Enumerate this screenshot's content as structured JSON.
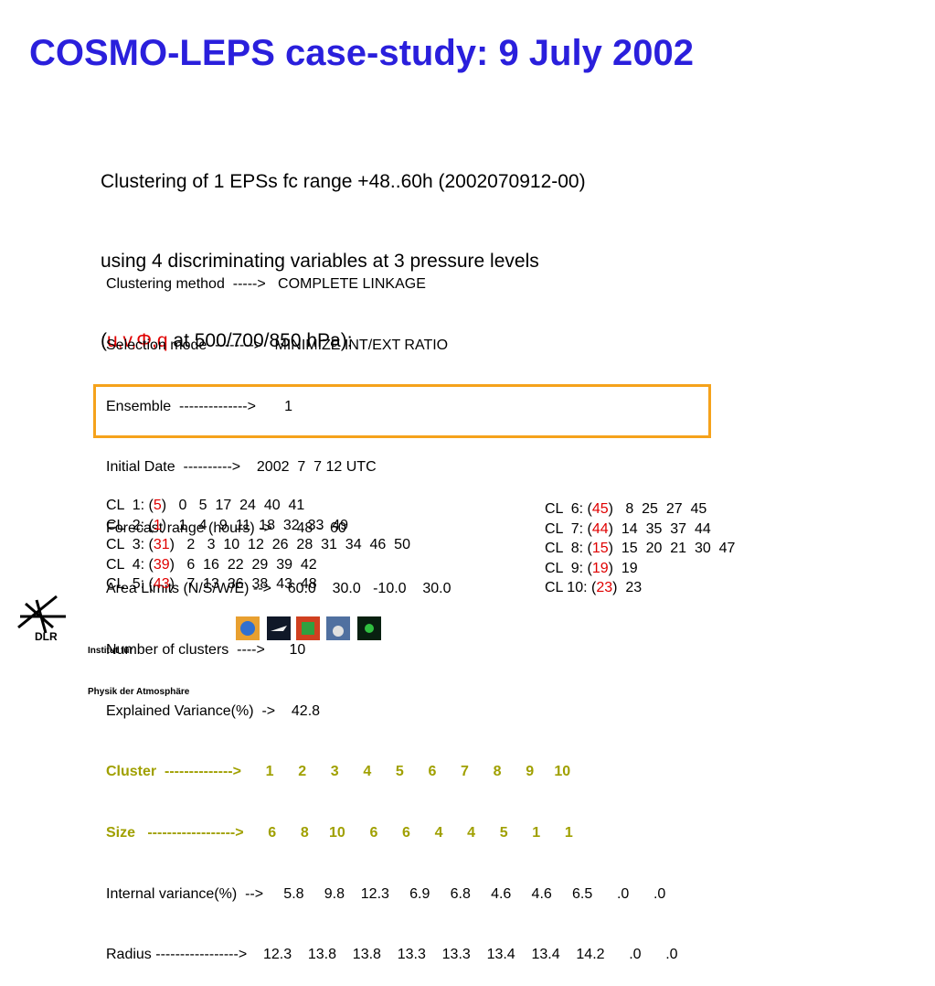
{
  "title": "COSMO-LEPS case-study: 9 July 2002",
  "intro": {
    "lines": [
      "Clustering of 1 EPSs fc range +48..60h (2002070912-00)",
      "using 4 discriminating variables at 3 pressure levels"
    ],
    "last_line": {
      "open": "(",
      "variables": "u,v,Φ,q",
      "rest": "at 500/700/850 hPa):"
    }
  },
  "settings": {
    "lines": [
      "Clustering method  ----->   COMPLETE LINKAGE",
      "Selection mode  -------->   MINIMIZE INT/EXT RATIO",
      "Ensemble  -------------->       1",
      "Initial Date  ---------->    2002  7  7 12 UTC",
      "Forecast range (hours) ->      48 -  60",
      "Area Limits (N/S/W/E) -->    60.0    30.0   -10.0    30.0",
      "Number of clusters  ---->      10",
      "Explained Variance(%)  ->    42.8"
    ],
    "highlighted": [
      "Cluster  -------------->      1      2      3      4      5      6      7      8      9     10",
      "Size   ------------------>      6      8     10      6      6      4      4      5      1      1"
    ],
    "after": [
      "Internal variance(%)  -->     5.8     9.8    12.3     6.9     6.8     4.6     4.6     6.5      .0      .0",
      "Radius ----------------->    12.3    13.8    13.8    13.3    13.3    13.4    13.4    14.2      .0      .0"
    ]
  },
  "clusters_left": [
    {
      "label": "CL  1: (",
      "size": "5",
      "members": ")   0   5  17  24  40  41"
    },
    {
      "label": "CL  2: (",
      "size": "1",
      "members": ")   1   4   9  11  18  32  33  49"
    },
    {
      "label": "CL  3: (",
      "size": "31",
      "members": ")   2   3  10  12  26  28  31  34  46  50"
    },
    {
      "label": "CL  4: (",
      "size": "39",
      "members": ")   6  16  22  29  39  42"
    },
    {
      "label": "CL  5: (",
      "size": "43",
      "members": ")   7  13  36  38  43  48"
    }
  ],
  "clusters_right": [
    {
      "label": "CL  6: (",
      "size": "45",
      "members": ")   8  25  27  45"
    },
    {
      "label": "CL  7: (",
      "size": "44",
      "members": ")  14  35  37  44"
    },
    {
      "label": "CL  8: (",
      "size": "15",
      "members": ")  15  20  21  30  47"
    },
    {
      "label": "CL  9: (",
      "size": "19",
      "members": ")  19"
    },
    {
      "label": "CL 10: (",
      "size": "23",
      "members": ")  23"
    }
  ],
  "footer": {
    "logo": "DLR",
    "institute": [
      "Institut für",
      "Physik der Atmosphäre"
    ]
  }
}
